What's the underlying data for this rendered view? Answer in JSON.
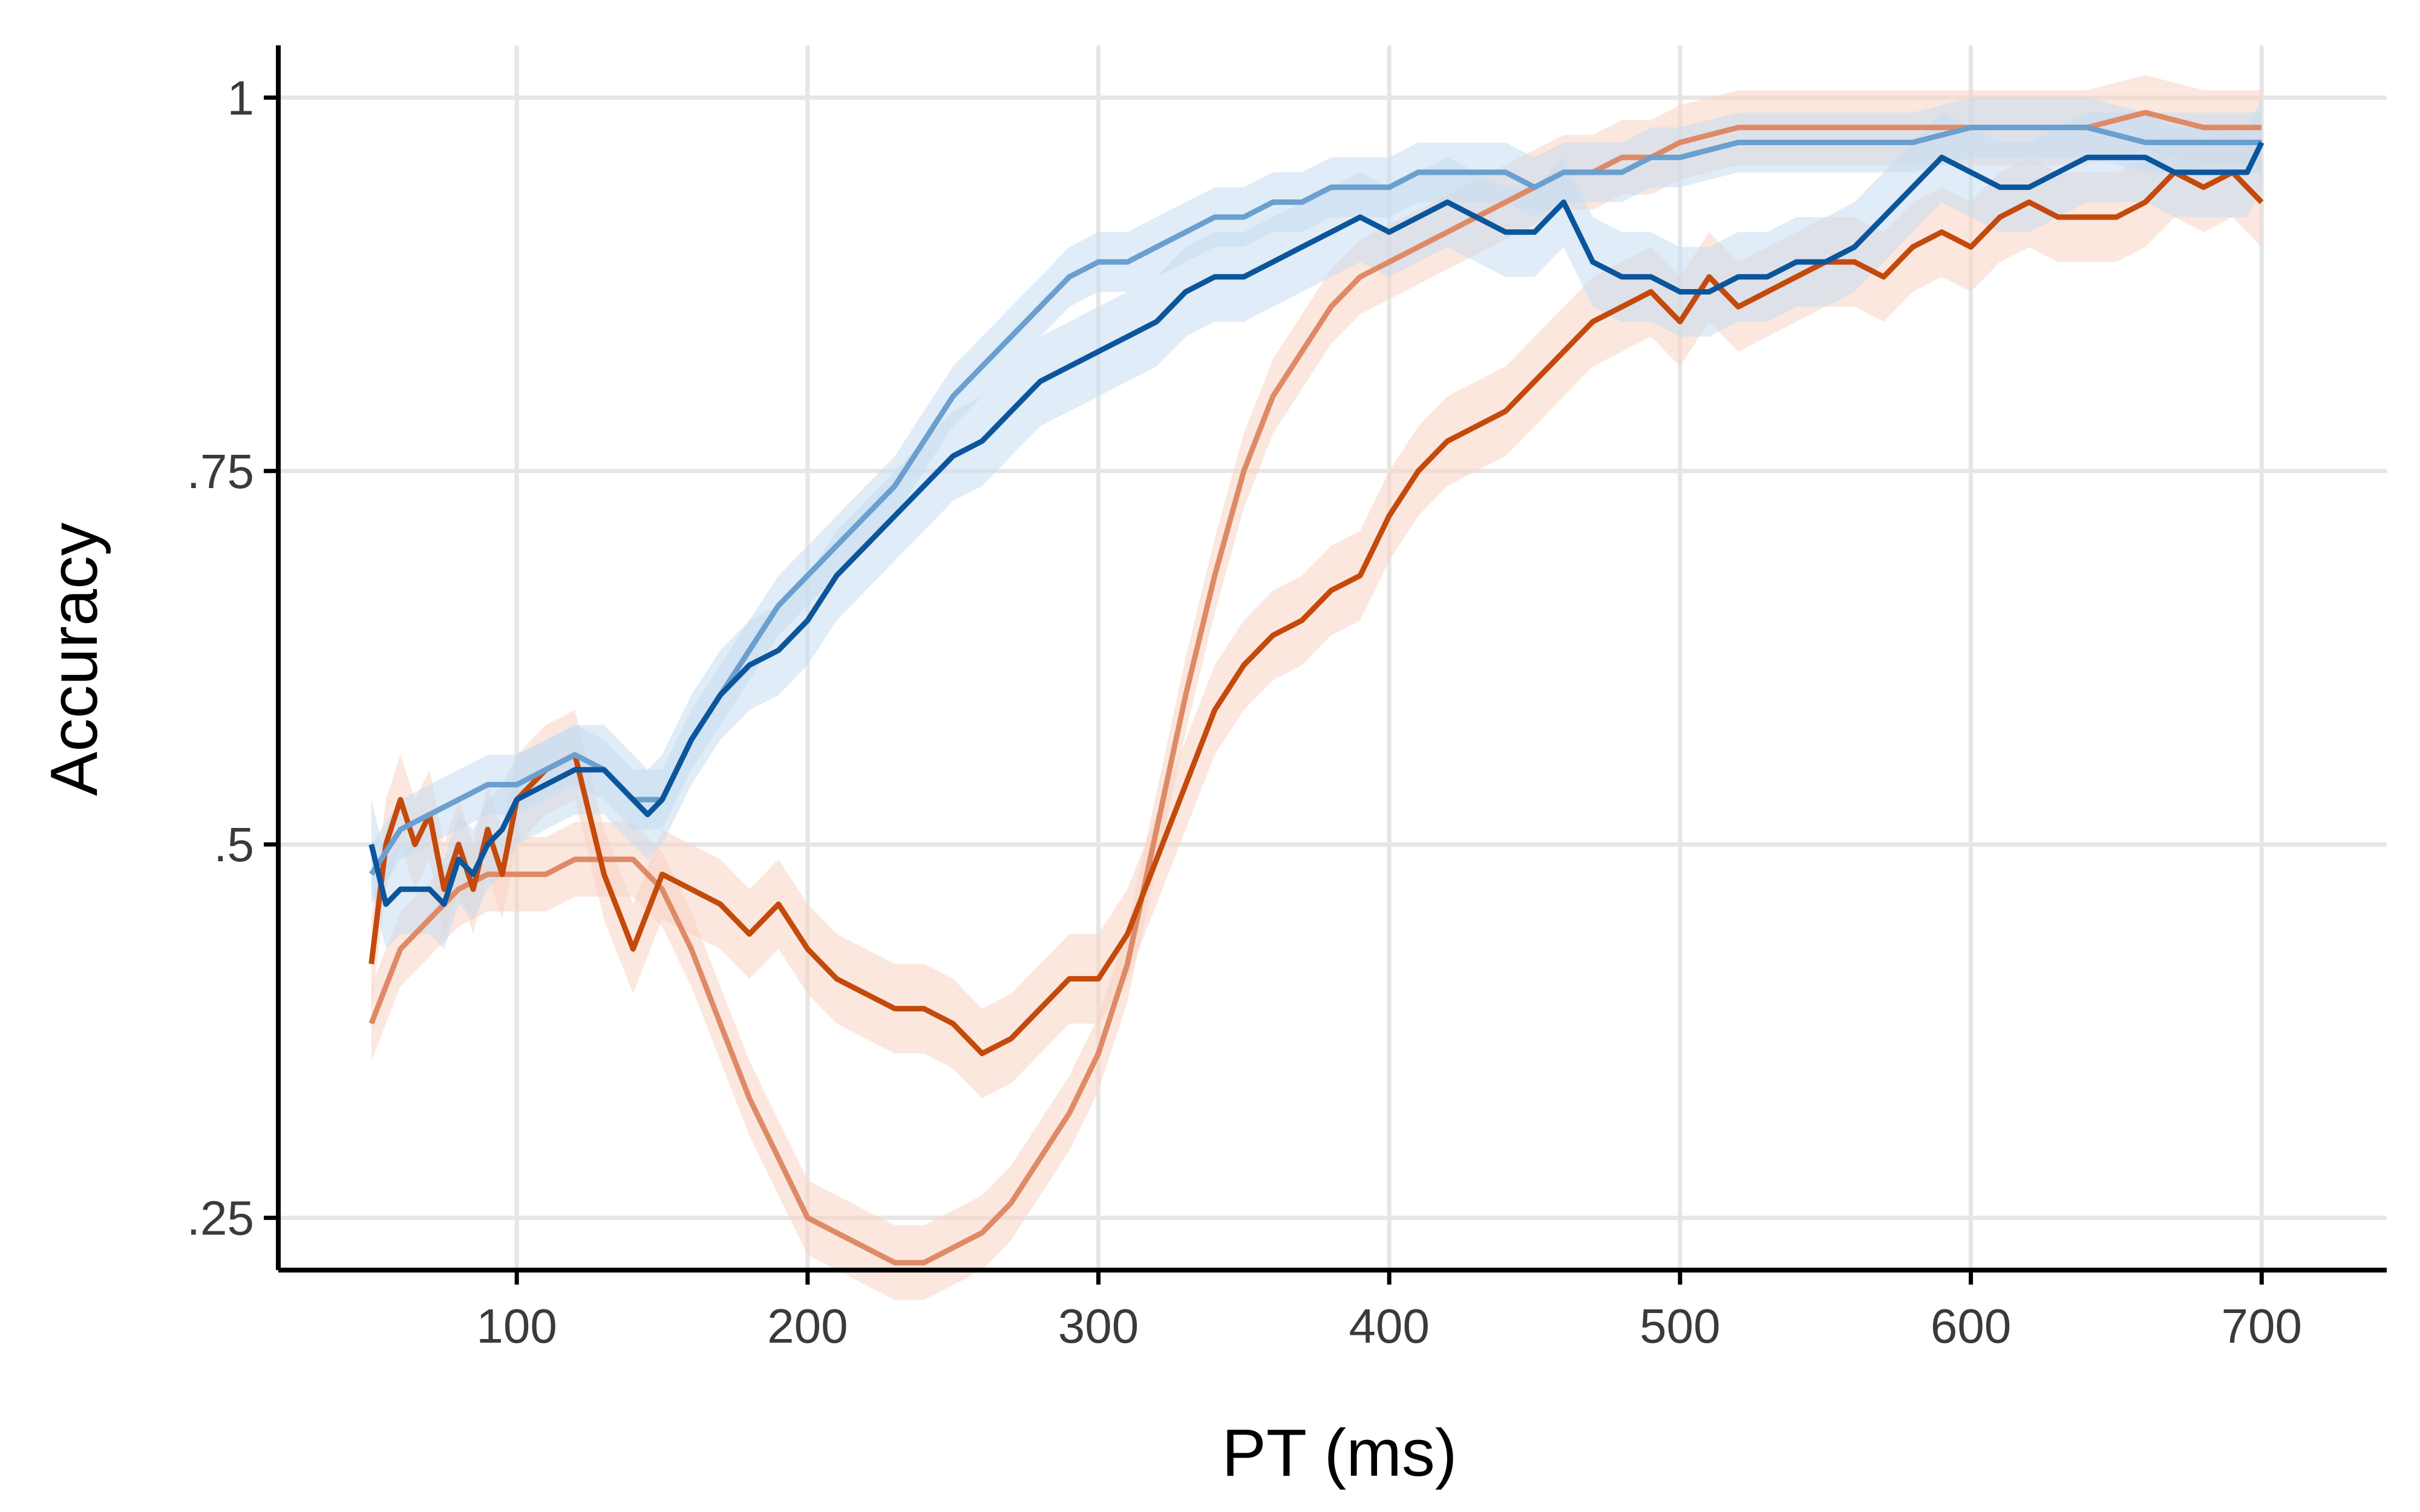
{
  "chart_data": {
    "type": "line",
    "title": "",
    "xlabel": "PT (ms)",
    "ylabel": "Accuracy",
    "xlim": [
      18,
      743
    ],
    "ylim": [
      0.215,
      1.035
    ],
    "x_ticks": [
      100,
      200,
      300,
      400,
      500,
      600,
      700
    ],
    "x_tick_labels": [
      "100",
      "200",
      "300",
      "400",
      "500",
      "600",
      "700"
    ],
    "y_ticks": [
      0.25,
      0.5,
      0.75,
      1
    ],
    "y_tick_labels": [
      ".25",
      ".5",
      ".75",
      "1"
    ],
    "grid": true,
    "legend": "none",
    "colors": {
      "dark_blue": "#0b559c",
      "light_blue": "#6a9fcf",
      "dark_orange": "#c44a0c",
      "light_orange": "#df8a66",
      "blue_band": "#c6dcf0",
      "orange_band": "#f8d3c3",
      "grid": "#e6e6e6",
      "axis": "#000000"
    },
    "series": [
      {
        "color": "#df8a66",
        "band_color": "#f8d3c3",
        "x": [
          50,
          60,
          70,
          80,
          90,
          100,
          110,
          120,
          130,
          140,
          150,
          160,
          170,
          180,
          190,
          200,
          210,
          220,
          230,
          240,
          250,
          260,
          270,
          280,
          290,
          300,
          310,
          320,
          330,
          340,
          350,
          360,
          370,
          380,
          390,
          400,
          410,
          420,
          430,
          440,
          450,
          460,
          470,
          480,
          490,
          500,
          520,
          540,
          560,
          580,
          600,
          620,
          640,
          660,
          680,
          700
        ],
        "y": [
          0.38,
          0.43,
          0.45,
          0.47,
          0.48,
          0.48,
          0.48,
          0.49,
          0.49,
          0.49,
          0.47,
          0.43,
          0.38,
          0.33,
          0.29,
          0.25,
          0.24,
          0.23,
          0.22,
          0.22,
          0.23,
          0.24,
          0.26,
          0.29,
          0.32,
          0.36,
          0.42,
          0.51,
          0.6,
          0.68,
          0.75,
          0.8,
          0.83,
          0.86,
          0.88,
          0.89,
          0.9,
          0.91,
          0.92,
          0.93,
          0.94,
          0.95,
          0.95,
          0.96,
          0.96,
          0.97,
          0.98,
          0.98,
          0.98,
          0.98,
          0.98,
          0.98,
          0.98,
          0.99,
          0.98,
          0.98
        ],
        "band": 0.025
      },
      {
        "color": "#c44a0c",
        "band_color": "#f8d3c3",
        "x": [
          50,
          55,
          60,
          65,
          70,
          75,
          80,
          85,
          90,
          95,
          100,
          110,
          120,
          130,
          140,
          150,
          160,
          170,
          180,
          190,
          200,
          210,
          220,
          230,
          240,
          250,
          260,
          270,
          280,
          290,
          300,
          310,
          320,
          330,
          340,
          350,
          360,
          370,
          380,
          390,
          400,
          410,
          420,
          430,
          440,
          450,
          460,
          470,
          480,
          490,
          500,
          510,
          520,
          530,
          540,
          550,
          560,
          570,
          580,
          590,
          600,
          610,
          620,
          630,
          640,
          650,
          660,
          670,
          680,
          690,
          700
        ],
        "y": [
          0.42,
          0.5,
          0.53,
          0.5,
          0.52,
          0.47,
          0.5,
          0.47,
          0.51,
          0.48,
          0.53,
          0.55,
          0.56,
          0.48,
          0.43,
          0.48,
          0.47,
          0.46,
          0.44,
          0.46,
          0.43,
          0.41,
          0.4,
          0.39,
          0.39,
          0.38,
          0.36,
          0.37,
          0.39,
          0.41,
          0.41,
          0.44,
          0.49,
          0.54,
          0.59,
          0.62,
          0.64,
          0.65,
          0.67,
          0.68,
          0.72,
          0.75,
          0.77,
          0.78,
          0.79,
          0.81,
          0.83,
          0.85,
          0.86,
          0.87,
          0.85,
          0.88,
          0.86,
          0.87,
          0.88,
          0.89,
          0.89,
          0.88,
          0.9,
          0.91,
          0.9,
          0.92,
          0.93,
          0.92,
          0.92,
          0.92,
          0.93,
          0.95,
          0.94,
          0.95,
          0.93
        ],
        "band": 0.03
      },
      {
        "color": "#6a9fcf",
        "band_color": "#c6dcf0",
        "x": [
          50,
          60,
          70,
          80,
          90,
          100,
          110,
          120,
          130,
          140,
          150,
          160,
          170,
          180,
          190,
          200,
          210,
          220,
          230,
          240,
          250,
          260,
          270,
          280,
          290,
          300,
          310,
          320,
          330,
          340,
          350,
          360,
          370,
          380,
          390,
          400,
          410,
          420,
          430,
          440,
          450,
          460,
          470,
          480,
          490,
          500,
          520,
          540,
          560,
          580,
          600,
          620,
          640,
          660,
          680,
          700
        ],
        "y": [
          0.48,
          0.51,
          0.52,
          0.53,
          0.54,
          0.54,
          0.55,
          0.56,
          0.55,
          0.53,
          0.53,
          0.57,
          0.6,
          0.63,
          0.66,
          0.68,
          0.7,
          0.72,
          0.74,
          0.77,
          0.8,
          0.82,
          0.84,
          0.86,
          0.88,
          0.89,
          0.89,
          0.9,
          0.91,
          0.92,
          0.92,
          0.93,
          0.93,
          0.94,
          0.94,
          0.94,
          0.95,
          0.95,
          0.95,
          0.95,
          0.94,
          0.95,
          0.95,
          0.95,
          0.96,
          0.96,
          0.97,
          0.97,
          0.97,
          0.97,
          0.98,
          0.98,
          0.98,
          0.97,
          0.97,
          0.97
        ],
        "band": 0.02
      },
      {
        "color": "#0b559c",
        "band_color": "#c6dcf0",
        "x": [
          50,
          55,
          60,
          65,
          70,
          75,
          80,
          85,
          90,
          95,
          100,
          110,
          120,
          130,
          140,
          145,
          150,
          160,
          170,
          180,
          190,
          200,
          210,
          220,
          230,
          240,
          250,
          260,
          270,
          280,
          290,
          300,
          310,
          320,
          330,
          340,
          350,
          360,
          370,
          380,
          390,
          400,
          410,
          420,
          430,
          440,
          450,
          460,
          470,
          480,
          490,
          500,
          510,
          520,
          530,
          540,
          550,
          560,
          570,
          580,
          590,
          600,
          610,
          620,
          630,
          640,
          650,
          660,
          670,
          680,
          690,
          695,
          700
        ],
        "y": [
          0.5,
          0.46,
          0.47,
          0.47,
          0.47,
          0.46,
          0.49,
          0.48,
          0.5,
          0.51,
          0.53,
          0.54,
          0.55,
          0.55,
          0.53,
          0.52,
          0.53,
          0.57,
          0.6,
          0.62,
          0.63,
          0.65,
          0.68,
          0.7,
          0.72,
          0.74,
          0.76,
          0.77,
          0.79,
          0.81,
          0.82,
          0.83,
          0.84,
          0.85,
          0.87,
          0.88,
          0.88,
          0.89,
          0.9,
          0.91,
          0.92,
          0.91,
          0.92,
          0.93,
          0.92,
          0.91,
          0.91,
          0.93,
          0.89,
          0.88,
          0.88,
          0.87,
          0.87,
          0.88,
          0.88,
          0.89,
          0.89,
          0.9,
          0.92,
          0.94,
          0.96,
          0.95,
          0.94,
          0.94,
          0.95,
          0.96,
          0.96,
          0.96,
          0.95,
          0.95,
          0.95,
          0.95,
          0.97
        ],
        "band": 0.03
      }
    ]
  }
}
